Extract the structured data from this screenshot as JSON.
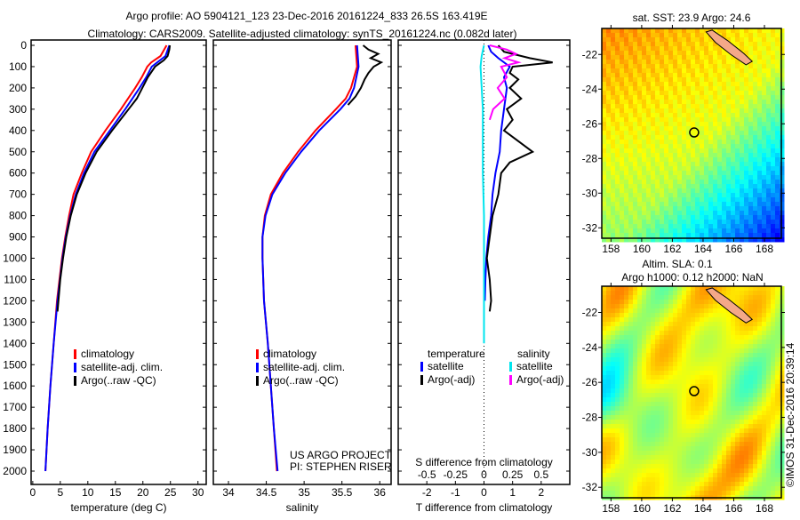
{
  "title_line1": "Argo profile: AO 5904121_123 23-Dec-2016 20161224_833 26.5S 163.419E",
  "title_line2": "Climatology: CARS2009. Satellite-adjusted climatology: synTS_20161224.nc (0.082d later)",
  "credit": "©IMOS 31-Dec-2016 20:39:14",
  "project_line1": "US ARGO PROJECT",
  "project_line2": "PI: STEPHEN RISER",
  "colors": {
    "climatology": "#ff0000",
    "satellite": "#0000ff",
    "argo": "#000000",
    "s_satellite": "#00e5ee",
    "s_argo": "#ff00ff"
  },
  "chart_data": [
    {
      "type": "line",
      "name": "temperature-profile",
      "xlabel": "temperature (deg C)",
      "xlim": [
        -0.3,
        31.5
      ],
      "xticks": [
        0,
        5,
        10,
        15,
        20,
        25,
        30
      ],
      "ylim": [
        0,
        2000
      ],
      "yticks": [
        0,
        100,
        200,
        300,
        400,
        500,
        600,
        700,
        800,
        900,
        1000,
        1100,
        1200,
        1300,
        1400,
        1500,
        1600,
        1700,
        1800,
        1900,
        2000
      ],
      "legend": [
        "climatology",
        "satellite-adj. clim.",
        "Argo(..raw -QC)"
      ],
      "series": [
        {
          "name": "climatology",
          "color": "#ff0000",
          "depth": [
            0,
            50,
            80,
            100,
            150,
            200,
            300,
            400,
            500,
            600,
            700,
            800,
            900,
            1000,
            1200,
            1400,
            1600,
            1800,
            2000
          ],
          "values": [
            24.3,
            23.2,
            21.5,
            20.8,
            19.8,
            18.6,
            16.0,
            13.2,
            10.6,
            8.9,
            7.4,
            6.6,
            5.9,
            5.3,
            4.4,
            3.8,
            3.2,
            2.7,
            2.3
          ]
        },
        {
          "name": "satellite-adj. clim.",
          "color": "#0000ff",
          "depth": [
            0,
            50,
            80,
            100,
            150,
            200,
            300,
            400,
            500,
            600,
            700,
            800,
            900,
            1000,
            1200,
            1400,
            1600,
            1800,
            2000
          ],
          "values": [
            24.8,
            24.1,
            22.6,
            21.6,
            20.6,
            19.4,
            16.8,
            14.0,
            11.2,
            9.3,
            7.8,
            6.8,
            6.0,
            5.4,
            4.5,
            3.8,
            3.2,
            2.7,
            2.3
          ]
        },
        {
          "name": "Argo(..raw -QC)",
          "color": "#000000",
          "depth": [
            0,
            20,
            50,
            70,
            100,
            150,
            200,
            250,
            300,
            400,
            500,
            600,
            700,
            800,
            900,
            1000,
            1100,
            1250
          ],
          "values": [
            24.9,
            24.8,
            24.5,
            23.8,
            22.2,
            20.9,
            19.9,
            18.9,
            17.4,
            14.4,
            11.6,
            9.6,
            8.0,
            6.9,
            6.1,
            5.5,
            5.0,
            4.5
          ]
        }
      ]
    },
    {
      "type": "line",
      "name": "salinity-profile",
      "xlabel": "salinity",
      "xlim": [
        33.8,
        36.15
      ],
      "xticks": [
        34,
        34.5,
        35,
        35.5,
        36
      ],
      "ylim": [
        0,
        2000
      ],
      "legend": [
        "climatology",
        "satellite-adj. clim.",
        "Argo(..raw -QC)"
      ],
      "series": [
        {
          "name": "climatology",
          "color": "#ff0000",
          "depth": [
            0,
            100,
            200,
            250,
            300,
            400,
            500,
            600,
            700,
            800,
            900,
            1000,
            1200,
            1400,
            1600,
            1800,
            2000
          ],
          "values": [
            35.68,
            35.7,
            35.62,
            35.55,
            35.42,
            35.15,
            34.92,
            34.72,
            34.56,
            34.48,
            34.45,
            34.45,
            34.47,
            34.52,
            34.56,
            34.6,
            34.64
          ]
        },
        {
          "name": "satellite-adj. clim.",
          "color": "#0000ff",
          "depth": [
            0,
            100,
            200,
            250,
            300,
            400,
            500,
            600,
            700,
            800,
            900,
            1000,
            1200,
            1400,
            1600,
            1800,
            2000
          ],
          "values": [
            35.7,
            35.72,
            35.66,
            35.6,
            35.48,
            35.2,
            34.96,
            34.75,
            34.58,
            34.49,
            34.45,
            34.45,
            34.47,
            34.52,
            34.56,
            34.6,
            34.65
          ]
        },
        {
          "name": "Argo(..raw -QC)",
          "color": "#000000",
          "depth": [
            0,
            20,
            40,
            60,
            80,
            100,
            130,
            160,
            200,
            240,
            280
          ],
          "values": [
            35.78,
            35.85,
            35.98,
            35.88,
            36.02,
            35.92,
            35.85,
            35.8,
            35.75,
            35.68,
            35.58
          ]
        }
      ]
    },
    {
      "type": "line",
      "name": "difference-profile",
      "xlabel": "T difference from climatology",
      "xlabel_top": "S difference from climatology",
      "xlim": [
        -3,
        3
      ],
      "xticks": [
        -2,
        -1,
        0,
        1,
        2
      ],
      "xticks_top": [
        "-0.5",
        "-0.25",
        "0",
        "0.25",
        "0.5"
      ],
      "ylim": [
        0,
        2000
      ],
      "legend_headers": [
        "temperature",
        "salinity"
      ],
      "legend": [
        [
          "satellite",
          "Argo(-adj)"
        ],
        [
          "satellite",
          "Argo(-adj)"
        ]
      ],
      "series": [
        {
          "name": "T satellite",
          "color": "#0000ff",
          "depth": [
            0,
            30,
            60,
            100,
            150,
            200,
            300,
            400,
            500,
            600,
            700,
            800,
            900,
            1000,
            1100,
            1200
          ],
          "values": [
            0.15,
            0.25,
            0.5,
            0.9,
            0.7,
            0.8,
            0.7,
            0.6,
            0.55,
            0.4,
            0.3,
            0.25,
            0.15,
            0.08,
            0.05,
            0.03
          ]
        },
        {
          "name": "T Argo(-adj)",
          "color": "#000000",
          "depth": [
            0,
            30,
            60,
            80,
            100,
            130,
            160,
            200,
            250,
            300,
            350,
            400,
            450,
            500,
            550,
            600,
            700,
            800,
            900,
            1000,
            1100,
            1200,
            1250
          ],
          "values": [
            0.5,
            0.7,
            1.6,
            2.4,
            1.0,
            0.9,
            1.2,
            0.9,
            1.3,
            0.8,
            1.0,
            0.7,
            1.2,
            1.7,
            0.9,
            0.6,
            0.5,
            0.3,
            0.2,
            0.1,
            0.2,
            0.25,
            0.2
          ]
        },
        {
          "name": "S satellite",
          "color": "#00e5ee",
          "depth": [
            0,
            50,
            100,
            200,
            300,
            400,
            600,
            800,
            1000,
            1200,
            1400
          ],
          "values": [
            0.0,
            -0.02,
            -0.03,
            -0.02,
            -0.01,
            -0.01,
            -0.01,
            0.0,
            0.0,
            0.0,
            0.0
          ]
        },
        {
          "name": "S Argo(-adj)",
          "color": "#ff00ff",
          "depth": [
            0,
            20,
            40,
            60,
            80,
            100,
            150,
            200,
            250,
            300,
            350
          ],
          "values": [
            0.05,
            0.2,
            0.28,
            0.18,
            0.3,
            0.15,
            0.2,
            0.12,
            0.18,
            0.08,
            0.05
          ]
        }
      ]
    },
    {
      "type": "heatmap",
      "name": "sst-map",
      "title": "sat. SST: 23.9 Argo: 24.6",
      "xticks": [
        158,
        160,
        162,
        164,
        166,
        168
      ],
      "yticks": [
        -22,
        -24,
        -26,
        -28,
        -30,
        -32
      ],
      "xlim": [
        157.4,
        169.1
      ],
      "ylim": [
        -32.6,
        -20.5
      ],
      "marker": {
        "lon": 163.419,
        "lat": -26.5
      }
    },
    {
      "type": "heatmap",
      "name": "sla-map",
      "title_line1": "Altim. SLA: 0.1",
      "title_line2": "Argo h1000: 0.12 h2000: NaN",
      "xticks": [
        158,
        160,
        162,
        164,
        166,
        168
      ],
      "yticks": [
        -22,
        -24,
        -26,
        -28,
        -30,
        -32
      ],
      "xlim": [
        157.4,
        169.1
      ],
      "ylim": [
        -32.6,
        -20.5
      ],
      "marker": {
        "lon": 163.419,
        "lat": -26.5
      }
    }
  ]
}
